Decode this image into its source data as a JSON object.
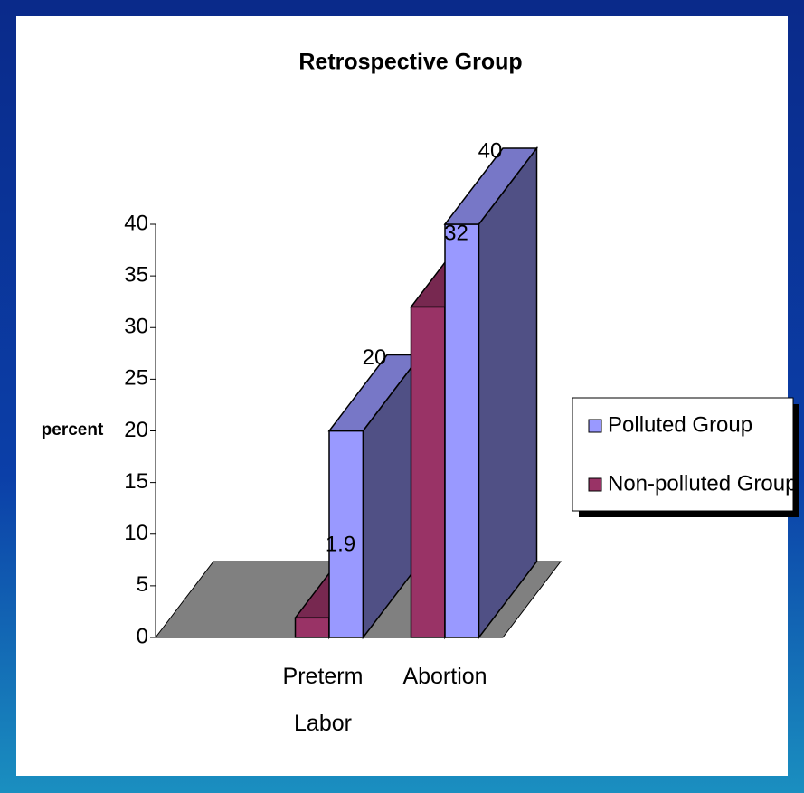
{
  "chart_data": {
    "type": "bar3d",
    "title": "Retrospective Group",
    "y_label": "percent",
    "categories": [
      "Preterm Labor",
      "Abortion"
    ],
    "series": [
      {
        "name": "Polluted Group",
        "color": "#9999ff",
        "values": [
          20,
          40
        ]
      },
      {
        "name": "Non-polluted Group",
        "color": "#993366",
        "values": [
          1.9,
          32
        ]
      }
    ],
    "ylim": [
      0,
      40
    ],
    "yticks": [
      0,
      5,
      10,
      15,
      20,
      25,
      30,
      35,
      40
    ],
    "legend": "right",
    "floor_color": "#808080"
  }
}
